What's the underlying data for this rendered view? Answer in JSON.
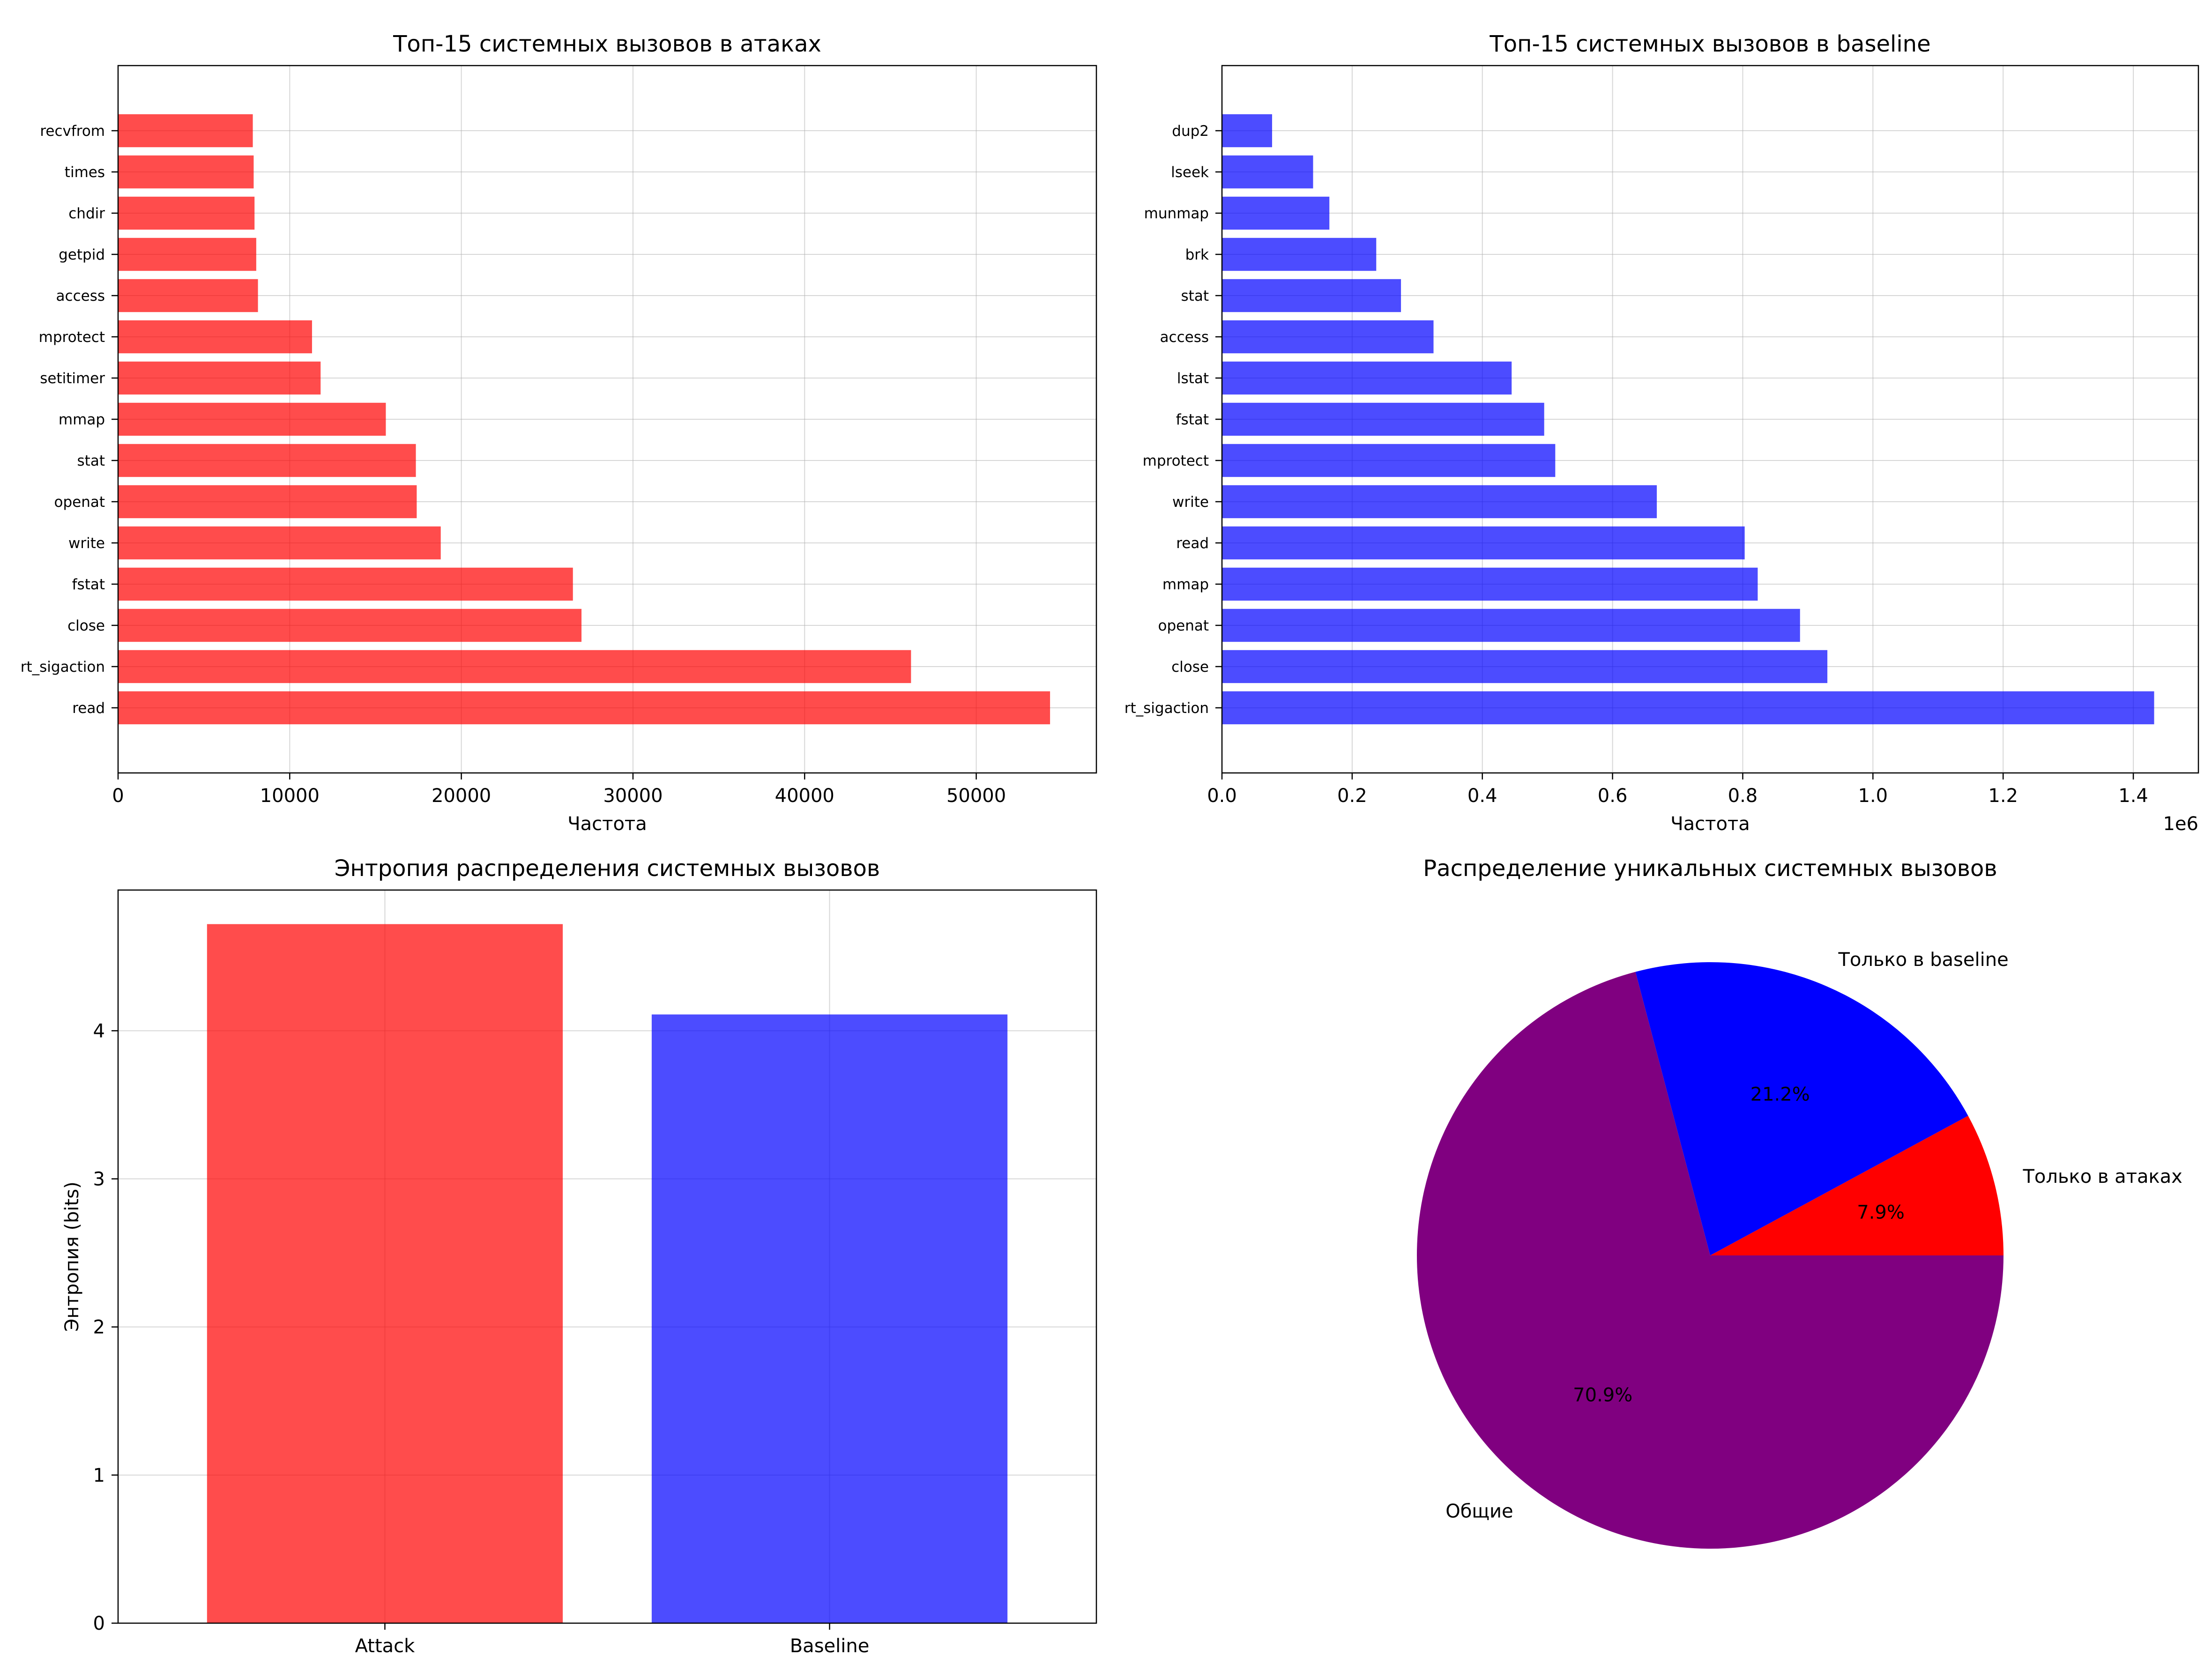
{
  "chart_data": [
    {
      "type": "bar",
      "orientation": "horizontal",
      "title": "Топ-15 системных вызовов в атаках",
      "xlabel": "Частота",
      "ylabel": "",
      "color": "#ff0000",
      "alpha": 0.7,
      "xlim": [
        0,
        57000
      ],
      "xticks": [
        0,
        10000,
        20000,
        30000,
        40000,
        50000
      ],
      "xtick_labels": [
        "0",
        "10000",
        "20000",
        "30000",
        "40000",
        "50000"
      ],
      "categories": [
        "read",
        "rt_sigaction",
        "close",
        "fstat",
        "write",
        "openat",
        "stat",
        "mmap",
        "setitimer",
        "mprotect",
        "access",
        "getpid",
        "chdir",
        "times",
        "recvfrom"
      ],
      "values": [
        54300,
        46200,
        27000,
        26500,
        18800,
        17400,
        17350,
        15600,
        11800,
        11300,
        8150,
        8050,
        7950,
        7900,
        7850
      ],
      "grid": true
    },
    {
      "type": "bar",
      "orientation": "horizontal",
      "title": "Топ-15 системных вызовов в baseline",
      "xlabel": "Частота",
      "ylabel": "",
      "x_offset_label": "1e6",
      "color": "#0000ff",
      "alpha": 0.7,
      "xlim": [
        0,
        1500000
      ],
      "xticks": [
        0,
        200000,
        400000,
        600000,
        800000,
        1000000,
        1200000,
        1400000
      ],
      "xtick_labels": [
        "0.0",
        "0.2",
        "0.4",
        "0.6",
        "0.8",
        "1.0",
        "1.2",
        "1.4"
      ],
      "categories": [
        "rt_sigaction",
        "close",
        "openat",
        "mmap",
        "read",
        "write",
        "mprotect",
        "fstat",
        "lstat",
        "access",
        "stat",
        "brk",
        "munmap",
        "lseek",
        "dup2"
      ],
      "values": [
        1432000,
        930000,
        888000,
        823000,
        803000,
        668000,
        512000,
        495000,
        445000,
        325000,
        275000,
        237000,
        165000,
        140000,
        77000
      ],
      "grid": true
    },
    {
      "type": "bar",
      "orientation": "vertical",
      "title": "Энтропия распределения системных вызовов",
      "xlabel": "",
      "ylabel": "Энтропия (bits)",
      "categories": [
        "Attack",
        "Baseline"
      ],
      "values": [
        4.72,
        4.11
      ],
      "colors": [
        "#ff0000",
        "#0000ff"
      ],
      "alpha": 0.7,
      "ylim": [
        0,
        4.95
      ],
      "yticks": [
        0,
        1,
        2,
        3,
        4
      ],
      "ytick_labels": [
        "0",
        "1",
        "2",
        "3",
        "4"
      ],
      "grid": true
    },
    {
      "type": "pie",
      "title": "Распределение уникальных системных вызовов",
      "slices": [
        {
          "label": "Только в атаках",
          "value": 7.9,
          "pct_label": "7.9%",
          "color": "#ff0000"
        },
        {
          "label": "Только в baseline",
          "value": 21.2,
          "pct_label": "21.2%",
          "color": "#0000ff"
        },
        {
          "label": "Общие",
          "value": 70.9,
          "pct_label": "70.9%",
          "color": "#800080"
        }
      ]
    }
  ]
}
